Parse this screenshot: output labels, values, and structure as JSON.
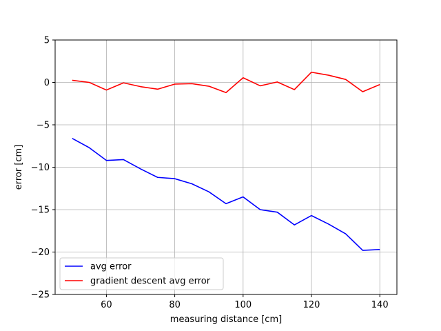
{
  "chart_data": {
    "type": "line",
    "title": "",
    "xlabel": "measuring distance [cm]",
    "ylabel": "error [cm]",
    "xlim": [
      45,
      145
    ],
    "ylim": [
      -25,
      5
    ],
    "xticks": [
      60,
      80,
      100,
      120,
      140
    ],
    "yticks": [
      5,
      0,
      -5,
      -10,
      -15,
      -20,
      -25
    ],
    "xtick_labels": [
      "60",
      "80",
      "100",
      "120",
      "140"
    ],
    "ytick_labels": [
      "5",
      "0",
      "−5",
      "−10",
      "−15",
      "−20",
      "−25"
    ],
    "grid": true,
    "legend_position": "lower-left",
    "x": [
      50,
      55,
      60,
      65,
      70,
      75,
      80,
      85,
      90,
      95,
      100,
      105,
      110,
      115,
      120,
      125,
      130,
      135,
      140
    ],
    "series": [
      {
        "name": "avg error",
        "color": "#0000ff",
        "values": [
          -6.6,
          -7.7,
          -9.2,
          -9.1,
          -10.2,
          -11.2,
          -11.35,
          -11.95,
          -12.9,
          -14.3,
          -13.5,
          -15.0,
          -15.3,
          -16.8,
          -15.7,
          -16.7,
          -17.85,
          -19.8,
          -19.7
        ]
      },
      {
        "name": "gradient descent avg error",
        "color": "#ff0000",
        "values": [
          0.25,
          0.0,
          -0.9,
          -0.05,
          -0.5,
          -0.8,
          -0.2,
          -0.15,
          -0.45,
          -1.2,
          0.55,
          -0.4,
          0.05,
          -0.85,
          1.2,
          0.85,
          0.35,
          -1.1,
          -0.25
        ]
      }
    ]
  }
}
